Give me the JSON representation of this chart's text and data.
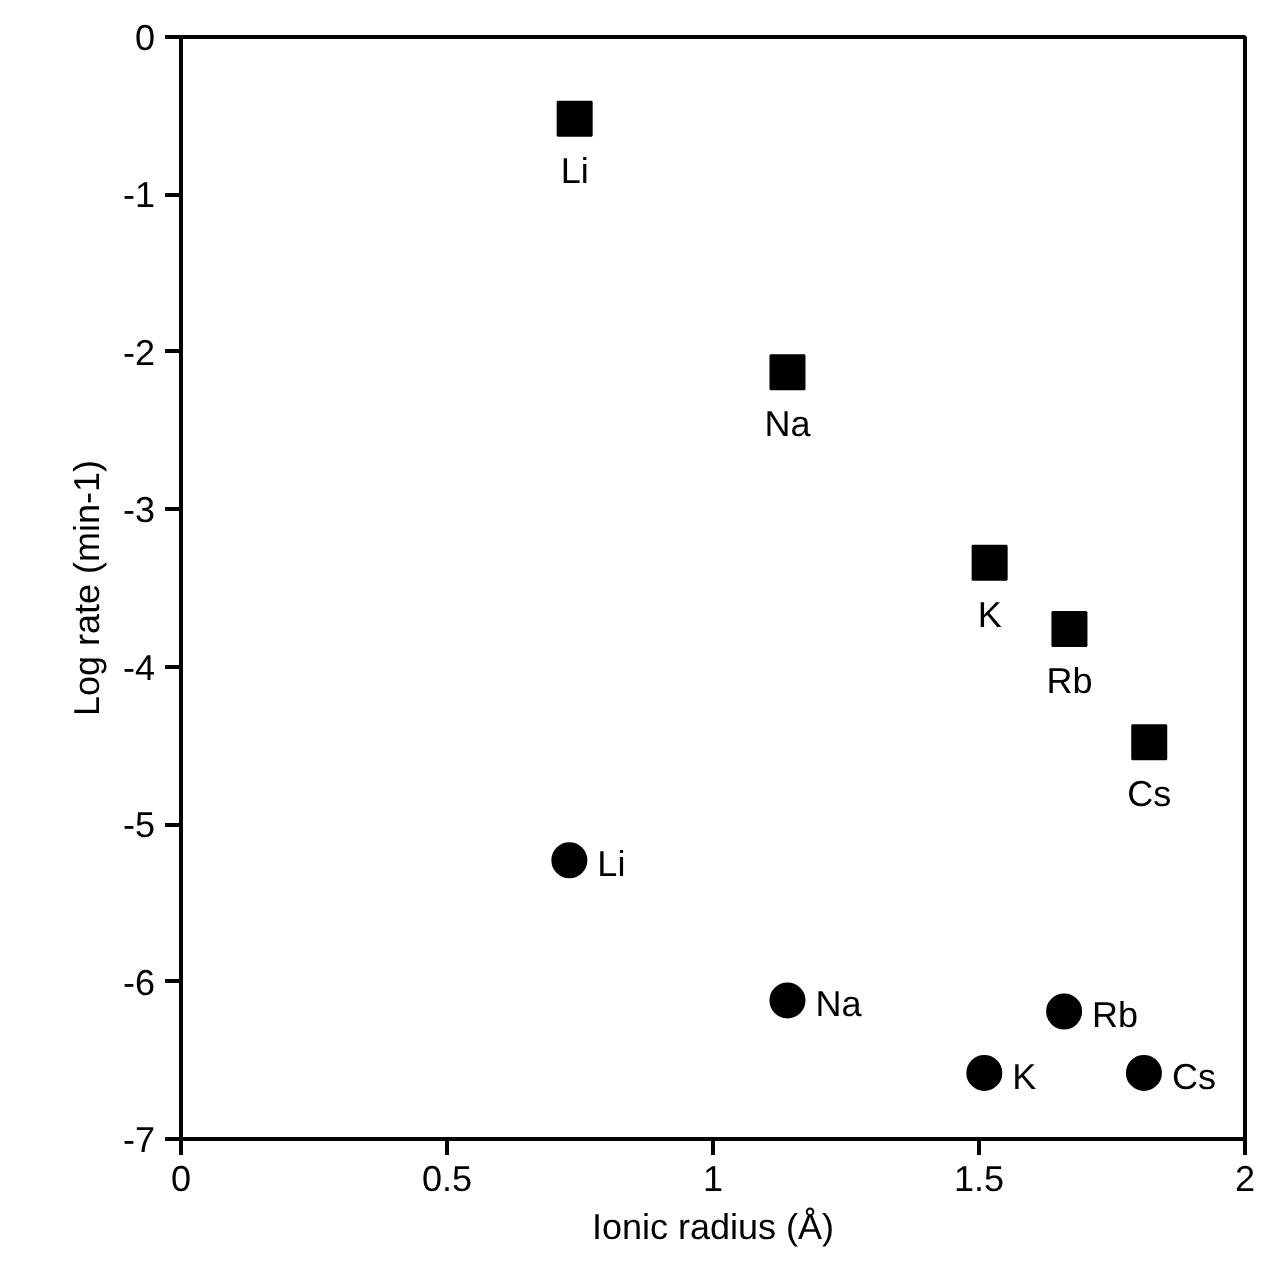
{
  "chart_data": {
    "type": "scatter",
    "xlabel": "Ionic radius (Å)",
    "ylabel": "Log rate (min-1)",
    "xlim": [
      0,
      2
    ],
    "ylim": [
      -7,
      0
    ],
    "xticks": [
      0,
      0.5,
      1,
      1.5,
      2
    ],
    "yticks": [
      -7,
      -6,
      -5,
      -4,
      -3,
      -2,
      -1,
      0
    ],
    "grid": false,
    "series": [
      {
        "color": "#000000",
        "marker": "square",
        "x": [
          0.74,
          1.14,
          1.52,
          1.67,
          1.82
        ],
        "values": [
          -0.52,
          -2.13,
          -3.34,
          -3.76,
          -4.48
        ]
      },
      {
        "color": "#000000",
        "marker": "circle",
        "x": [
          0.73,
          1.14,
          1.51,
          1.66,
          1.81
        ],
        "values": [
          -5.23,
          -6.12,
          -6.58,
          -6.19,
          -6.58
        ]
      }
    ],
    "annotations": [
      {
        "text": "Li",
        "x": 0.74,
        "y": -0.52
      },
      {
        "text": "Na",
        "x": 1.14,
        "y": -2.13
      },
      {
        "text": "K",
        "x": 1.52,
        "y": -3.34
      },
      {
        "text": "Rb",
        "x": 1.67,
        "y": -3.76
      },
      {
        "text": "Cs",
        "x": 1.82,
        "y": -4.48
      },
      {
        "text": "Li",
        "x": 0.73,
        "y": -5.23
      },
      {
        "text": "Na",
        "x": 1.14,
        "y": -6.12
      },
      {
        "text": "K",
        "x": 1.51,
        "y": -6.58
      },
      {
        "text": "Rb",
        "x": 1.66,
        "y": -6.19
      },
      {
        "text": "Cs",
        "x": 1.81,
        "y": -6.58
      }
    ]
  }
}
